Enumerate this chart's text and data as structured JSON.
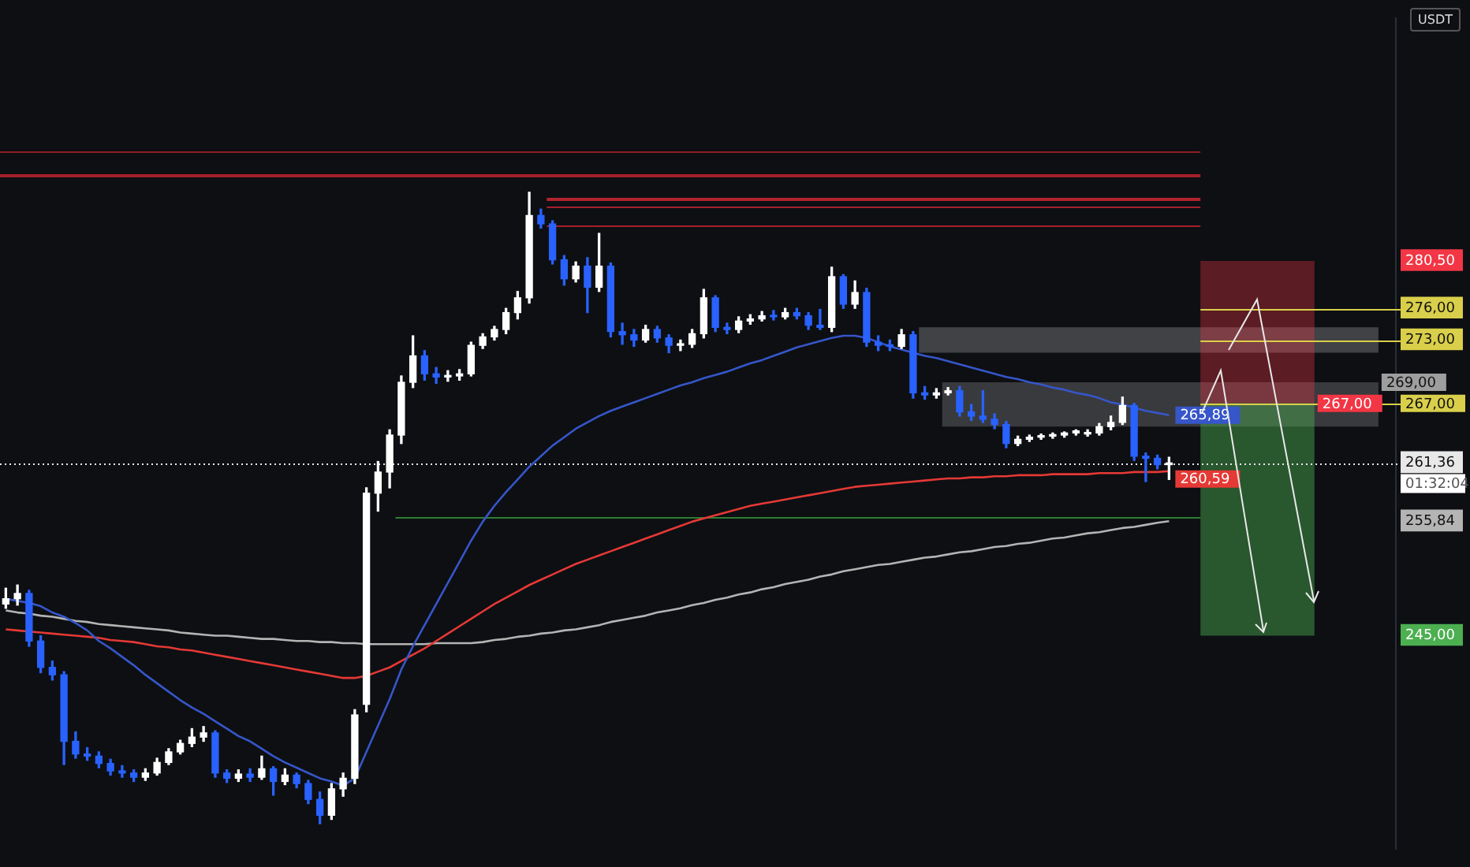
{
  "chart_data": {
    "type": "candlestick",
    "ylabel": "USDT",
    "tick_labels": "y",
    "categories": [
      null,
      null,
      null,
      null,
      null,
      null,
      null,
      null,
      null,
      null,
      null,
      null,
      null,
      null,
      null,
      null,
      null,
      null,
      null,
      null,
      null,
      null,
      null,
      null,
      null,
      null,
      null,
      null,
      null,
      null,
      null,
      null,
      null,
      null,
      null,
      null,
      null,
      null,
      null,
      null,
      null,
      null,
      null,
      null,
      null,
      null,
      null,
      null,
      null,
      null,
      null,
      null,
      null,
      null,
      null,
      null,
      null,
      null,
      null,
      null,
      null,
      null,
      null,
      null,
      null,
      null,
      null,
      null,
      null,
      null,
      null,
      null,
      null,
      null,
      null,
      null,
      null,
      null,
      null,
      null,
      null,
      null,
      null,
      null,
      null,
      null,
      null,
      null,
      null,
      null,
      null,
      null,
      null,
      null,
      null,
      null,
      null,
      null,
      null,
      null,
      null,
      null,
      null,
      null,
      null,
      null,
      null,
      null,
      null,
      null,
      null,
      null,
      null,
      null,
      null,
      null,
      null,
      null,
      null,
      null
    ],
    "ohlc": [
      [
        248.0,
        249.5,
        247.6,
        248.5
      ],
      [
        248.5,
        249.8,
        247.9,
        249.0
      ],
      [
        249.0,
        249.3,
        244.0,
        244.5
      ],
      [
        244.5,
        245.0,
        241.5,
        242.0
      ],
      [
        242.0,
        242.6,
        240.8,
        241.3
      ],
      [
        241.3,
        241.6,
        232.8,
        235.0
      ],
      [
        235.0,
        235.9,
        233.4,
        233.8
      ],
      [
        233.8,
        234.4,
        233.2,
        233.6
      ],
      [
        233.6,
        234.0,
        232.5,
        232.9
      ],
      [
        232.9,
        233.3,
        231.8,
        232.2
      ],
      [
        232.2,
        232.7,
        231.6,
        232.0
      ],
      [
        232.0,
        232.3,
        231.2,
        231.6
      ],
      [
        231.6,
        232.4,
        231.3,
        232.0
      ],
      [
        232.0,
        233.4,
        231.8,
        233.0
      ],
      [
        233.0,
        234.3,
        232.8,
        234.0
      ],
      [
        234.0,
        235.1,
        233.8,
        234.8
      ],
      [
        234.8,
        236.2,
        234.5,
        235.4
      ],
      [
        235.4,
        236.4,
        235.0,
        235.8
      ],
      [
        235.8,
        236.0,
        231.6,
        232.0
      ],
      [
        232.0,
        232.3,
        231.1,
        231.5
      ],
      [
        231.5,
        232.3,
        231.2,
        231.9
      ],
      [
        231.9,
        232.4,
        231.2,
        231.6
      ],
      [
        231.6,
        233.6,
        231.4,
        232.4
      ],
      [
        232.4,
        232.6,
        229.9,
        231.2
      ],
      [
        231.2,
        232.4,
        230.9,
        231.8
      ],
      [
        231.8,
        232.0,
        230.6,
        231.0
      ],
      [
        231.0,
        231.3,
        229.1,
        229.5
      ],
      [
        229.5,
        230.2,
        227.2,
        228.0
      ],
      [
        228.0,
        231.0,
        227.6,
        230.5
      ],
      [
        230.5,
        232.0,
        229.8,
        231.5
      ],
      [
        231.5,
        238.0,
        231.0,
        237.5
      ],
      [
        238.5,
        259.0,
        237.8,
        258.5
      ],
      [
        258.5,
        261.5,
        256.8,
        260.5
      ],
      [
        260.5,
        264.5,
        259.0,
        264.0
      ],
      [
        264.0,
        269.6,
        263.2,
        269.0
      ],
      [
        269.0,
        273.4,
        268.5,
        271.5
      ],
      [
        271.5,
        272.0,
        269.2,
        269.8
      ],
      [
        269.8,
        270.4,
        268.9,
        269.5
      ],
      [
        269.5,
        270.1,
        269.1,
        269.6
      ],
      [
        269.6,
        270.2,
        269.2,
        269.8
      ],
      [
        269.8,
        272.8,
        269.6,
        272.5
      ],
      [
        272.5,
        273.6,
        272.2,
        273.3
      ],
      [
        273.3,
        274.3,
        273.0,
        274.0
      ],
      [
        274.0,
        276.0,
        273.6,
        275.6
      ],
      [
        275.6,
        277.6,
        275.0,
        277.0
      ],
      [
        277.0,
        287.0,
        276.5,
        284.8
      ],
      [
        284.8,
        285.4,
        283.6,
        284.0
      ],
      [
        284.0,
        284.3,
        280.2,
        280.6
      ],
      [
        280.6,
        281.0,
        278.2,
        278.8
      ],
      [
        278.8,
        280.4,
        278.5,
        280.0
      ],
      [
        280.0,
        280.8,
        275.6,
        278.0
      ],
      [
        278.0,
        283.1,
        277.6,
        280.0
      ],
      [
        280.0,
        280.3,
        273.3,
        273.8
      ],
      [
        273.8,
        274.6,
        272.6,
        273.5
      ],
      [
        273.5,
        274.0,
        272.4,
        273.0
      ],
      [
        273.0,
        274.4,
        272.8,
        274.0
      ],
      [
        274.0,
        274.3,
        272.8,
        273.2
      ],
      [
        273.2,
        273.5,
        271.8,
        272.5
      ],
      [
        272.5,
        273.0,
        272.0,
        272.6
      ],
      [
        272.6,
        274.0,
        272.3,
        273.6
      ],
      [
        273.6,
        277.8,
        273.2,
        277.0
      ],
      [
        277.0,
        277.2,
        273.8,
        274.2
      ],
      [
        274.2,
        274.6,
        273.6,
        274.0
      ],
      [
        274.0,
        275.2,
        273.7,
        274.8
      ],
      [
        274.8,
        275.4,
        274.5,
        275.0
      ],
      [
        275.0,
        275.7,
        274.8,
        275.3
      ],
      [
        275.3,
        275.8,
        274.9,
        275.2
      ],
      [
        275.2,
        276.0,
        275.0,
        275.6
      ],
      [
        275.6,
        276.0,
        275.0,
        275.3
      ],
      [
        275.3,
        275.6,
        274.0,
        274.4
      ],
      [
        274.4,
        275.9,
        274.0,
        274.2
      ],
      [
        274.2,
        279.9,
        273.8,
        279.0
      ],
      [
        279.0,
        279.2,
        276.0,
        276.4
      ],
      [
        276.4,
        278.6,
        276.0,
        277.5
      ],
      [
        277.5,
        277.9,
        272.4,
        272.8
      ],
      [
        272.8,
        273.4,
        272.0,
        272.5
      ],
      [
        272.5,
        273.0,
        272.0,
        272.4
      ],
      [
        272.4,
        274.0,
        272.2,
        273.5
      ],
      [
        273.5,
        273.8,
        267.5,
        268.0
      ],
      [
        268.0,
        268.6,
        267.4,
        267.8
      ],
      [
        267.8,
        268.4,
        267.5,
        268.0
      ],
      [
        268.0,
        268.5,
        267.8,
        268.2
      ],
      [
        268.2,
        268.6,
        265.8,
        266.2
      ],
      [
        266.2,
        266.9,
        265.4,
        265.8
      ],
      [
        265.8,
        268.2,
        265.2,
        265.5
      ],
      [
        265.5,
        266.0,
        264.6,
        265.0
      ],
      [
        265.0,
        265.3,
        262.8,
        263.2
      ],
      [
        263.2,
        263.9,
        263.0,
        263.6
      ],
      [
        263.6,
        264.0,
        263.4,
        263.8
      ],
      [
        263.8,
        264.1,
        263.6,
        263.9
      ],
      [
        263.9,
        264.2,
        263.7,
        264.0
      ],
      [
        264.0,
        264.3,
        263.8,
        264.2
      ],
      [
        264.2,
        264.5,
        264.0,
        264.4
      ],
      [
        264.1,
        264.5,
        263.9,
        264.2
      ],
      [
        264.2,
        265.1,
        264.0,
        264.8
      ],
      [
        264.8,
        265.8,
        264.5,
        265.2
      ],
      [
        265.2,
        267.6,
        265.0,
        266.8
      ],
      [
        266.8,
        267.0,
        261.6,
        262.0
      ],
      [
        262.0,
        262.3,
        259.6,
        261.8
      ],
      [
        261.8,
        262.1,
        260.8,
        261.2
      ],
      [
        261.2,
        261.9,
        259.8,
        261.36
      ],
      null,
      null,
      null,
      null,
      null,
      null,
      null,
      null,
      null,
      null,
      null,
      null,
      null,
      null,
      null,
      null,
      null,
      null,
      null
    ],
    "colors": [
      "#ffffff",
      "#ffffff",
      "#2962ff",
      "#2962ff",
      "#2962ff",
      "#2962ff",
      "#2962ff",
      "#2962ff",
      "#2962ff",
      "#2962ff",
      "#2962ff",
      "#2962ff",
      "#ffffff",
      "#ffffff",
      "#ffffff",
      "#ffffff",
      "#ffffff",
      "#ffffff",
      "#2962ff",
      "#2962ff",
      "#ffffff",
      "#2962ff",
      "#ffffff",
      "#2962ff",
      "#ffffff",
      "#2962ff",
      "#2962ff",
      "#2962ff",
      "#ffffff",
      "#ffffff",
      "#ffffff",
      "#ffffff",
      "#ffffff",
      "#ffffff",
      "#ffffff",
      "#ffffff",
      "#2962ff",
      "#2962ff",
      "#ffffff",
      "#ffffff",
      "#ffffff",
      "#ffffff",
      "#ffffff",
      "#ffffff",
      "#ffffff",
      "#ffffff",
      "#2962ff",
      "#2962ff",
      "#2962ff",
      "#ffffff",
      "#2962ff",
      "#ffffff",
      "#2962ff",
      "#2962ff",
      "#2962ff",
      "#ffffff",
      "#2962ff",
      "#2962ff",
      "#ffffff",
      "#ffffff",
      "#ffffff",
      "#2962ff",
      "#2962ff",
      "#ffffff",
      "#ffffff",
      "#ffffff",
      "#2962ff",
      "#ffffff",
      "#2962ff",
      "#2962ff",
      "#2962ff",
      "#ffffff",
      "#2962ff",
      "#ffffff",
      "#2962ff",
      "#2962ff",
      "#2962ff",
      "#ffffff",
      "#2962ff",
      "#2962ff",
      "#ffffff",
      "#ffffff",
      "#2962ff",
      "#2962ff",
      "#2962ff",
      "#2962ff",
      "#2962ff",
      "#ffffff",
      "#ffffff",
      "#ffffff",
      "#ffffff",
      "#ffffff",
      "#ffffff",
      "#ffffff",
      "#ffffff",
      "#ffffff",
      "#ffffff",
      "#2962ff",
      "#2962ff",
      "#2962ff",
      "#ffffff",
      null,
      null,
      null,
      null,
      null,
      null,
      null,
      null,
      null,
      null,
      null,
      null,
      null,
      null,
      null,
      null,
      null,
      null,
      null
    ],
    "series": [
      {
        "type": "line",
        "color": "#3656c9",
        "value_labels": [
          null,
          null,
          null,
          null,
          null,
          null,
          null,
          null,
          null,
          null,
          null,
          null,
          null,
          null,
          null,
          null,
          null,
          null,
          null,
          null,
          null,
          null,
          null,
          null,
          null,
          null,
          null,
          null,
          null,
          null,
          null,
          null,
          null,
          null,
          null,
          null,
          null,
          null,
          null,
          null,
          null,
          null,
          null,
          null,
          null,
          null,
          null,
          null,
          null,
          null,
          null,
          null,
          null,
          null,
          null,
          null,
          null,
          null,
          null,
          null,
          null,
          null,
          null,
          null,
          null,
          null,
          null,
          null,
          null,
          null,
          null,
          null,
          null,
          null,
          null,
          null,
          null,
          null,
          null,
          null,
          null,
          null,
          null,
          null,
          null,
          null,
          null,
          null,
          null,
          null,
          null,
          null,
          null,
          null,
          null,
          null,
          null,
          null,
          null,
          null,
          "265,89",
          null,
          null,
          null,
          null,
          null,
          null,
          null,
          null,
          null,
          null,
          null,
          null,
          null,
          null,
          null,
          null,
          null,
          null,
          null
        ],
        "values": [
          248.5,
          248.3,
          248.1,
          247.8,
          247.2,
          246.8,
          246.2,
          245.5,
          244.5,
          243.8,
          243.0,
          242.2,
          241.3,
          240.5,
          239.7,
          238.9,
          238.2,
          237.6,
          236.9,
          236.2,
          235.5,
          235.0,
          234.3,
          233.6,
          233.0,
          232.5,
          232.0,
          231.5,
          231.2,
          230.8,
          231.5,
          234.0,
          236.5,
          239.0,
          241.8,
          244.0,
          246.0,
          248.0,
          250.0,
          252.0,
          254.0,
          255.8,
          257.3,
          258.6,
          259.8,
          261.0,
          262.0,
          263.0,
          263.8,
          264.6,
          265.2,
          265.8,
          266.3,
          266.7,
          267.1,
          267.5,
          267.9,
          268.3,
          268.7,
          269.0,
          269.4,
          269.7,
          270.0,
          270.4,
          270.8,
          271.1,
          271.5,
          271.9,
          272.3,
          272.6,
          272.9,
          273.2,
          273.4,
          273.4,
          273.2,
          272.8,
          272.4,
          272.1,
          271.8,
          271.5,
          271.3,
          271.0,
          270.7,
          270.4,
          270.1,
          269.8,
          269.5,
          269.3,
          269.0,
          268.8,
          268.5,
          268.3,
          268.0,
          267.8,
          267.5,
          267.1,
          266.9,
          266.6,
          266.3,
          266.1,
          265.89,
          null,
          null,
          null,
          null,
          null,
          null,
          null,
          null,
          null,
          null,
          null,
          null,
          null,
          null,
          null,
          null,
          null,
          null,
          null
        ]
      },
      {
        "type": "line",
        "color": "#e53935",
        "value_labels": [
          null,
          null,
          null,
          null,
          null,
          null,
          null,
          null,
          null,
          null,
          null,
          null,
          null,
          null,
          null,
          null,
          null,
          null,
          null,
          null,
          null,
          null,
          null,
          null,
          null,
          null,
          null,
          null,
          null,
          null,
          null,
          null,
          null,
          null,
          null,
          null,
          null,
          null,
          null,
          null,
          null,
          null,
          null,
          null,
          null,
          null,
          null,
          null,
          null,
          null,
          null,
          null,
          null,
          null,
          null,
          null,
          null,
          null,
          null,
          null,
          null,
          null,
          null,
          null,
          null,
          null,
          null,
          null,
          null,
          null,
          null,
          null,
          null,
          null,
          null,
          null,
          null,
          null,
          null,
          null,
          null,
          null,
          null,
          null,
          null,
          null,
          null,
          null,
          null,
          null,
          null,
          null,
          null,
          null,
          null,
          null,
          null,
          null,
          null,
          null,
          "260,59",
          null,
          null,
          null,
          null,
          null,
          null,
          null,
          null,
          null,
          null,
          null,
          null,
          null,
          null,
          null,
          null,
          null,
          null,
          null
        ],
        "values": [
          245.6,
          245.5,
          245.4,
          245.3,
          245.2,
          245.1,
          245.0,
          244.9,
          244.8,
          244.6,
          244.5,
          244.4,
          244.2,
          244.0,
          243.9,
          243.7,
          243.6,
          243.4,
          243.2,
          243.0,
          242.8,
          242.6,
          242.4,
          242.2,
          242.0,
          241.8,
          241.6,
          241.4,
          241.2,
          241.0,
          241.0,
          241.2,
          241.6,
          242.0,
          242.6,
          243.2,
          243.8,
          244.5,
          245.2,
          245.9,
          246.6,
          247.3,
          248.0,
          248.6,
          249.2,
          249.8,
          250.3,
          250.8,
          251.3,
          251.8,
          252.2,
          252.6,
          253.0,
          253.4,
          253.8,
          254.2,
          254.6,
          255.0,
          255.4,
          255.8,
          256.1,
          256.4,
          256.7,
          257.0,
          257.3,
          257.5,
          257.7,
          257.9,
          258.1,
          258.3,
          258.5,
          258.7,
          258.9,
          259.1,
          259.2,
          259.3,
          259.4,
          259.5,
          259.6,
          259.7,
          259.8,
          259.9,
          259.9,
          260.0,
          260.0,
          260.1,
          260.1,
          260.2,
          260.2,
          260.2,
          260.3,
          260.3,
          260.3,
          260.3,
          260.4,
          260.4,
          260.4,
          260.5,
          260.5,
          260.5,
          260.59,
          null,
          null,
          null,
          null,
          null,
          null,
          null,
          null,
          null,
          null,
          null,
          null,
          null,
          null,
          null,
          null,
          null,
          null,
          null
        ]
      },
      {
        "type": "line",
        "color": "#b4b4b4",
        "values": [
          247.4,
          247.2,
          247.1,
          246.9,
          246.8,
          246.6,
          246.4,
          246.3,
          246.1,
          246.0,
          245.9,
          245.8,
          245.7,
          245.6,
          245.5,
          245.3,
          245.2,
          245.1,
          245.0,
          245.0,
          244.9,
          244.8,
          244.7,
          244.7,
          244.6,
          244.5,
          244.5,
          244.4,
          244.4,
          244.3,
          244.3,
          244.2,
          244.2,
          244.2,
          244.2,
          244.2,
          244.2,
          244.3,
          244.3,
          244.3,
          244.3,
          244.4,
          244.6,
          244.7,
          244.9,
          245.0,
          245.2,
          245.3,
          245.5,
          245.6,
          245.8,
          246.0,
          246.3,
          246.5,
          246.7,
          246.9,
          247.2,
          247.4,
          247.6,
          247.9,
          248.1,
          248.4,
          248.6,
          248.9,
          249.1,
          249.4,
          249.6,
          249.9,
          250.1,
          250.3,
          250.6,
          250.8,
          251.1,
          251.3,
          251.5,
          251.7,
          251.8,
          252.0,
          252.2,
          252.4,
          252.5,
          252.7,
          252.9,
          253.0,
          253.2,
          253.4,
          253.5,
          253.7,
          253.8,
          254.0,
          254.2,
          254.3,
          254.5,
          254.7,
          254.8,
          255.0,
          255.2,
          255.3,
          255.5,
          255.7,
          255.84,
          null,
          null,
          null,
          null,
          null,
          null,
          null,
          null,
          null,
          null,
          null,
          null,
          null,
          null,
          null,
          null,
          null,
          null,
          null
        ]
      }
    ],
    "ylim": [
      224.8,
      303.5
    ],
    "yticks": [
      {
        "value": 280.5,
        "label": "280,50"
      },
      {
        "value": 276,
        "label": "276,00"
      },
      {
        "value": 273,
        "label": "273,00"
      },
      {
        "value": 261.36,
        "label": "261,36"
      },
      {
        "value": 255.84,
        "label": "255,84"
      },
      {
        "value": 245,
        "label": "245,00"
      }
    ],
    "ref_lines": [
      {
        "axis": "y",
        "value": 290.9,
        "color": "#8e1c24"
      },
      {
        "axis": "y",
        "value": 288.7,
        "color": "#a3202a"
      },
      {
        "axis": "y",
        "value": 286.4,
        "color": "#b0232d"
      },
      {
        "axis": "y",
        "value": 285.7,
        "color": "#a3202a"
      },
      {
        "axis": "y",
        "value": 283.9,
        "color": "#a3202a"
      },
      {
        "axis": "y",
        "value": 276,
        "color": "#d9cf4a"
      },
      {
        "axis": "y",
        "value": 273,
        "color": "#d9cf4a"
      },
      {
        "axis": "y",
        "value": 267,
        "color": "#d9cf4a",
        "label": "267,00"
      },
      {
        "axis": "y",
        "value": 261.36,
        "color": "#e8e8e8",
        "line_style": "dotted"
      },
      {
        "axis": "y",
        "value": 256.3,
        "color": "#2e7d32"
      }
    ],
    "bands": [
      {
        "axis": "y",
        "from": 271.8,
        "to": 274.2,
        "color": "#c8c8c8"
      },
      {
        "axis": "y",
        "from": 264.8,
        "to": 269,
        "color": "#9e9e9e",
        "label": "269,00"
      },
      {
        "axis": "y",
        "from": 267,
        "to": 280.5,
        "color": "#f23645",
        "label": "267,00"
      },
      {
        "axis": "y",
        "from": 245,
        "to": 267,
        "color": "#4caf50"
      }
    ],
    "annotations": [
      "01:32:04"
    ]
  }
}
